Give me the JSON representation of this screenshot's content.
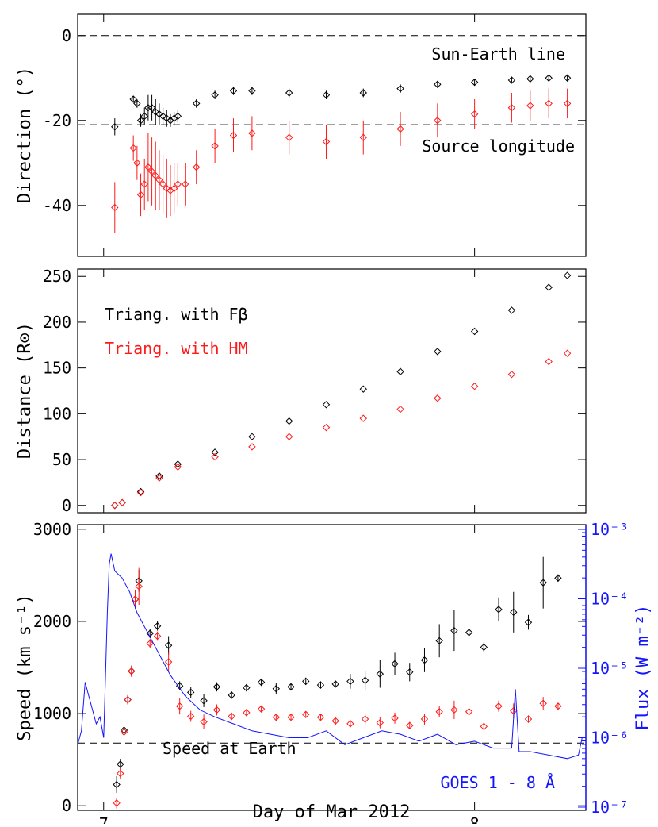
{
  "chart_data": [
    {
      "type": "scatter",
      "ylabel": "Direction (°)",
      "ylim": [
        -52,
        5
      ],
      "xlim": [
        6.93,
        8.3
      ],
      "yticks": [
        "0",
        "-20",
        "-40"
      ],
      "yticks_values": [
        0,
        -20,
        -40
      ],
      "annotations": [
        {
          "text": "Sun-Earth line",
          "y": 0
        },
        {
          "text": "Source longitude",
          "y": -21
        }
      ],
      "series": [
        {
          "name": "Triang. with Fβ",
          "color": "#000000",
          "x": [
            7.03,
            7.08,
            7.09,
            7.1,
            7.11,
            7.12,
            7.13,
            7.14,
            7.15,
            7.16,
            7.17,
            7.18,
            7.19,
            7.2,
            7.25,
            7.3,
            7.35,
            7.4,
            7.5,
            7.6,
            7.7,
            7.8,
            7.9,
            8.0,
            8.1,
            8.15,
            8.2,
            8.25
          ],
          "y": [
            -21.5,
            -15,
            -16,
            -20,
            -19,
            -17,
            -17,
            -18,
            -18.5,
            -19,
            -19.5,
            -20,
            -19.5,
            -19,
            -16,
            -14,
            -13,
            -13,
            -13.5,
            -14,
            -13.5,
            -12.5,
            -11.5,
            -11,
            -10.5,
            -10.2,
            -10,
            -10
          ],
          "err": [
            2,
            0.8,
            1,
            1.5,
            2,
            3,
            3,
            3,
            2.5,
            2,
            2,
            1.5,
            1.5,
            1.5,
            1,
            1,
            1,
            1,
            1,
            1,
            1,
            1,
            0.8,
            0.8,
            0.7,
            0.7,
            0.7,
            0.7
          ]
        },
        {
          "name": "Triang. with HM",
          "color": "#ff1a1a",
          "x": [
            7.03,
            7.08,
            7.09,
            7.1,
            7.11,
            7.12,
            7.13,
            7.14,
            7.15,
            7.16,
            7.17,
            7.18,
            7.19,
            7.2,
            7.22,
            7.25,
            7.3,
            7.35,
            7.4,
            7.5,
            7.6,
            7.7,
            7.8,
            7.9,
            8.0,
            8.1,
            8.15,
            8.2,
            8.25
          ],
          "y": [
            -40.5,
            -26.5,
            -30,
            -37.5,
            -35,
            -31,
            -32,
            -33,
            -34,
            -35,
            -36,
            -36.5,
            -36,
            -35,
            -35,
            -31,
            -26,
            -23.5,
            -23,
            -24,
            -25,
            -24,
            -22,
            -20,
            -18.5,
            -17,
            -16.5,
            -16,
            -16
          ],
          "err": [
            6,
            3,
            4,
            5,
            6,
            8,
            8,
            8,
            7,
            7,
            7,
            6,
            6,
            5,
            5,
            4,
            4,
            4,
            4,
            4,
            4,
            4,
            4,
            4,
            3.5,
            3.5,
            3.5,
            3.5,
            3.5
          ]
        }
      ]
    },
    {
      "type": "scatter",
      "ylabel": "Distance (R⊙)",
      "ylim": [
        -8,
        258
      ],
      "xlim": [
        6.93,
        8.3
      ],
      "yticks": [
        "0",
        "50",
        "100",
        "150",
        "200",
        "250"
      ],
      "yticks_values": [
        0,
        50,
        100,
        150,
        200,
        250
      ],
      "legend": [
        "Triang. with Fβ",
        "Triang. with HM"
      ],
      "legend_position": "top-left",
      "series": [
        {
          "name": "Triang. with Fβ",
          "color": "#000000",
          "x": [
            7.03,
            7.05,
            7.1,
            7.15,
            7.2,
            7.3,
            7.4,
            7.5,
            7.6,
            7.7,
            7.8,
            7.9,
            8.0,
            8.1,
            8.2,
            8.25
          ],
          "y": [
            0,
            3,
            15,
            32,
            45,
            58,
            75,
            92,
            110,
            127,
            146,
            168,
            190,
            213,
            238,
            251
          ]
        },
        {
          "name": "Triang. with HM",
          "color": "#ff1a1a",
          "x": [
            7.03,
            7.05,
            7.1,
            7.15,
            7.2,
            7.3,
            7.4,
            7.5,
            7.6,
            7.7,
            7.8,
            7.9,
            8.0,
            8.1,
            8.2,
            8.25
          ],
          "y": [
            0,
            3,
            14,
            30,
            42,
            53,
            64,
            75,
            85,
            95,
            105,
            117,
            130,
            143,
            157,
            166
          ]
        }
      ]
    },
    {
      "type": "scatter",
      "ylabel": "Speed (km s⁻¹)",
      "ylabel_right": "Flux (W m⁻²)",
      "xlabel": "Day of Mar 2012",
      "ylim": [
        -50,
        3050
      ],
      "xlim": [
        6.93,
        8.3
      ],
      "xticks": [
        "7",
        "8"
      ],
      "xticks_values": [
        7,
        8
      ],
      "yticks": [
        "0",
        "1000",
        "2000",
        "3000"
      ],
      "yticks_values": [
        0,
        1000,
        2000,
        3000
      ],
      "yticks_right": [
        "10⁻⁷",
        "10⁻⁶",
        "10⁻⁵",
        "10⁻⁴",
        "10⁻³"
      ],
      "yticks_right_values": [
        -7,
        -6,
        -5,
        -4,
        -3
      ],
      "annotations": [
        {
          "text": "Speed at Earth",
          "y": 680
        },
        {
          "text": "GOES 1 - 8 Å"
        }
      ],
      "series": [
        {
          "name": "Triang. with Fβ",
          "color": "#000000",
          "x": [
            7.035,
            7.045,
            7.055,
            7.065,
            7.075,
            7.085,
            7.095,
            7.125,
            7.145,
            7.175,
            7.205,
            7.235,
            7.27,
            7.305,
            7.345,
            7.385,
            7.425,
            7.465,
            7.505,
            7.545,
            7.585,
            7.625,
            7.665,
            7.705,
            7.745,
            7.785,
            7.825,
            7.865,
            7.905,
            7.945,
            7.985,
            8.025,
            8.065,
            8.105,
            8.145,
            8.185,
            8.225
          ],
          "y": [
            230,
            450,
            820,
            1150,
            1460,
            2240,
            2440,
            1870,
            1950,
            1740,
            1300,
            1230,
            1140,
            1290,
            1200,
            1280,
            1340,
            1270,
            1290,
            1350,
            1310,
            1320,
            1350,
            1360,
            1430,
            1540,
            1450,
            1580,
            1790,
            1900,
            1880,
            1720,
            2130,
            2100,
            1990,
            2420,
            2470
          ],
          "err": [
            90,
            60,
            50,
            50,
            60,
            100,
            120,
            50,
            50,
            100,
            50,
            60,
            70,
            50,
            40,
            40,
            40,
            60,
            40,
            40,
            40,
            30,
            80,
            100,
            150,
            120,
            100,
            130,
            180,
            220,
            30,
            50,
            130,
            220,
            80,
            280,
            40
          ]
        },
        {
          "name": "Triang. with HM",
          "color": "#ff1a1a",
          "x": [
            7.035,
            7.045,
            7.055,
            7.065,
            7.075,
            7.085,
            7.095,
            7.125,
            7.145,
            7.175,
            7.205,
            7.235,
            7.27,
            7.305,
            7.345,
            7.385,
            7.425,
            7.465,
            7.505,
            7.545,
            7.585,
            7.625,
            7.665,
            7.705,
            7.745,
            7.785,
            7.825,
            7.865,
            7.905,
            7.945,
            7.985,
            8.025,
            8.065,
            8.105,
            8.145,
            8.185,
            8.225
          ],
          "y": [
            30,
            350,
            800,
            1150,
            1460,
            2240,
            2380,
            1760,
            1840,
            1560,
            1080,
            970,
            910,
            1040,
            970,
            1010,
            1050,
            960,
            960,
            990,
            960,
            920,
            890,
            940,
            900,
            950,
            870,
            940,
            1020,
            1040,
            1020,
            860,
            1080,
            1030,
            940,
            1110,
            1080
          ],
          "err": [
            60,
            60,
            50,
            50,
            60,
            100,
            200,
            50,
            50,
            100,
            90,
            60,
            80,
            60,
            40,
            40,
            30,
            40,
            30,
            30,
            30,
            40,
            40,
            60,
            60,
            60,
            40,
            60,
            60,
            100,
            30,
            40,
            60,
            80,
            40,
            70,
            30
          ]
        },
        {
          "name": "GOES 1 - 8 Å",
          "color": "#1414ff",
          "axis": "right-log",
          "x": [
            6.93,
            6.94,
            6.95,
            6.96,
            6.97,
            6.98,
            6.99,
            7.0,
            7.01,
            7.015,
            7.02,
            7.03,
            7.05,
            7.07,
            7.09,
            7.12,
            7.15,
            7.18,
            7.22,
            7.26,
            7.3,
            7.35,
            7.4,
            7.45,
            7.5,
            7.55,
            7.6,
            7.65,
            7.7,
            7.75,
            7.8,
            7.85,
            7.9,
            7.95,
            8.0,
            8.05,
            8.1,
            8.11,
            8.12,
            8.15,
            8.2,
            8.25,
            8.28,
            8.29,
            8.3
          ],
          "y": [
            -6.1,
            -5.9,
            -5.2,
            -5.4,
            -5.6,
            -5.8,
            -5.7,
            -6.0,
            -4.2,
            -3.5,
            -3.35,
            -3.6,
            -3.7,
            -3.9,
            -4.2,
            -4.5,
            -4.8,
            -5.1,
            -5.4,
            -5.6,
            -5.7,
            -5.8,
            -5.9,
            -5.95,
            -6.0,
            -6.0,
            -5.9,
            -6.1,
            -6.0,
            -5.9,
            -5.95,
            -6.05,
            -5.95,
            -6.1,
            -6.05,
            -6.15,
            -6.15,
            -5.3,
            -6.2,
            -6.2,
            -6.25,
            -6.3,
            -6.25,
            -6.0,
            -6.0
          ]
        }
      ]
    }
  ]
}
